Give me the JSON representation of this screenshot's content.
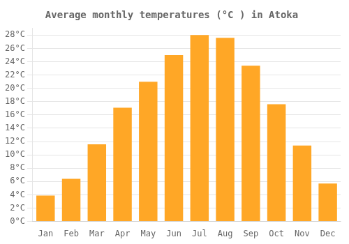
{
  "chart_data": {
    "type": "bar",
    "title": "Average monthly temperatures (°C ) in Atoka",
    "categories": [
      "Jan",
      "Feb",
      "Mar",
      "Apr",
      "May",
      "Jun",
      "Jul",
      "Aug",
      "Sep",
      "Oct",
      "Nov",
      "Dec"
    ],
    "values": [
      3.9,
      6.4,
      11.6,
      17.1,
      21.0,
      25.0,
      28.0,
      27.6,
      23.4,
      17.6,
      11.4,
      5.7
    ],
    "color": "#FFA726",
    "ylim": [
      0,
      29
    ],
    "yticks": [
      {
        "value": 0,
        "label": "0°C"
      },
      {
        "value": 2,
        "label": "2°C"
      },
      {
        "value": 4,
        "label": "4°C"
      },
      {
        "value": 6,
        "label": "6°C"
      },
      {
        "value": 8,
        "label": "8°C"
      },
      {
        "value": 10,
        "label": "10°C"
      },
      {
        "value": 12,
        "label": "12°C"
      },
      {
        "value": 14,
        "label": "14°C"
      },
      {
        "value": 16,
        "label": "16°C"
      },
      {
        "value": 18,
        "label": "18°C"
      },
      {
        "value": 20,
        "label": "20°C"
      },
      {
        "value": 22,
        "label": "22°C"
      },
      {
        "value": 24,
        "label": "24°C"
      },
      {
        "value": 26,
        "label": "26°C"
      },
      {
        "value": 28,
        "label": "28°C"
      }
    ],
    "grid": true
  }
}
